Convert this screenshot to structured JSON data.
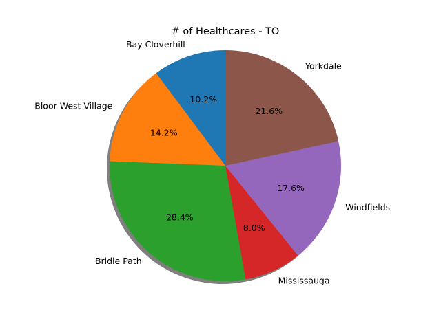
{
  "chart_data": {
    "type": "pie",
    "title": "# of Healthcares - TO",
    "shadow": true,
    "start_angle_deg": 90,
    "direction": "counterclockwise",
    "slices": [
      {
        "label": "Bay Cloverhill",
        "value": 10.2,
        "display": "10.2%",
        "color": "#1f77b4"
      },
      {
        "label": "Bloor West Village",
        "value": 14.2,
        "display": "14.2%",
        "color": "#ff7f0e"
      },
      {
        "label": "Bridle Path",
        "value": 28.4,
        "display": "28.4%",
        "color": "#2ca02c"
      },
      {
        "label": "Mississauga",
        "value": 8.0,
        "display": "8.0%",
        "color": "#d62728"
      },
      {
        "label": "Windfields",
        "value": 17.6,
        "display": "17.6%",
        "color": "#9467bd"
      },
      {
        "label": "Yorkdale",
        "value": 21.6,
        "display": "21.6%",
        "color": "#8c564b"
      }
    ]
  }
}
